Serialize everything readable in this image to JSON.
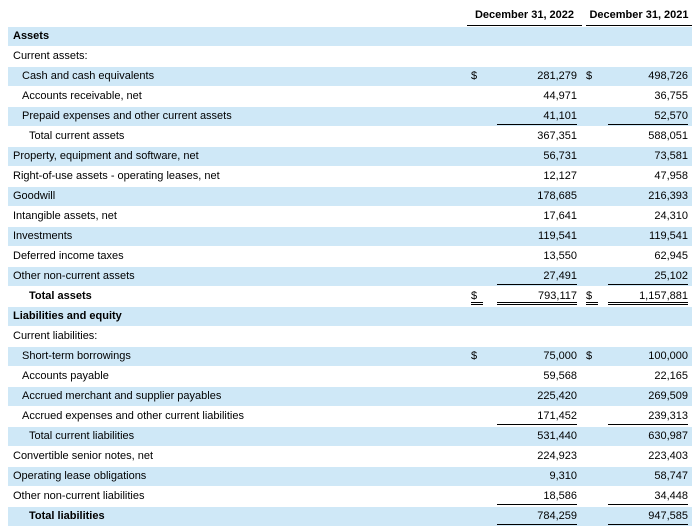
{
  "table": {
    "columns": [
      "December 31, 2022",
      "December 31, 2021"
    ],
    "rows": [
      {
        "label": "Assets"
      },
      {
        "label": "Current assets:"
      },
      {
        "label": "Cash and cash equivalents",
        "currency": [
          "$",
          "$"
        ],
        "values": [
          "281,279",
          "498,726"
        ]
      },
      {
        "label": "Accounts receivable, net",
        "values": [
          "44,971",
          "36,755"
        ]
      },
      {
        "label": "Prepaid expenses and other current assets",
        "values": [
          "41,101",
          "52,570"
        ]
      },
      {
        "label": "Total current assets",
        "values": [
          "367,351",
          "588,051"
        ]
      },
      {
        "label": "Property, equipment and software, net",
        "values": [
          "56,731",
          "73,581"
        ]
      },
      {
        "label": "Right-of-use assets - operating leases, net",
        "values": [
          "12,127",
          "47,958"
        ]
      },
      {
        "label": "Goodwill",
        "values": [
          "178,685",
          "216,393"
        ]
      },
      {
        "label": "Intangible assets, net",
        "values": [
          "17,641",
          "24,310"
        ]
      },
      {
        "label": "Investments",
        "values": [
          "119,541",
          "119,541"
        ]
      },
      {
        "label": "Deferred income taxes",
        "values": [
          "13,550",
          "62,945"
        ]
      },
      {
        "label": "Other non-current assets",
        "values": [
          "27,491",
          "25,102"
        ]
      },
      {
        "label": "Total assets",
        "currency": [
          "$",
          "$"
        ],
        "values": [
          "793,117",
          "1,157,881"
        ]
      },
      {
        "label": "Liabilities and equity"
      },
      {
        "label": "Current liabilities:"
      },
      {
        "label": "Short-term borrowings",
        "currency": [
          "$",
          "$"
        ],
        "values": [
          "75,000",
          "100,000"
        ]
      },
      {
        "label": "Accounts payable",
        "values": [
          "59,568",
          "22,165"
        ]
      },
      {
        "label": "Accrued merchant and supplier payables",
        "values": [
          "225,420",
          "269,509"
        ]
      },
      {
        "label": "Accrued expenses and other current liabilities",
        "values": [
          "171,452",
          "239,313"
        ]
      },
      {
        "label": "Total current liabilities",
        "values": [
          "531,440",
          "630,987"
        ]
      },
      {
        "label": "Convertible senior notes, net",
        "values": [
          "224,923",
          "223,403"
        ]
      },
      {
        "label": "Operating lease obligations",
        "values": [
          "9,310",
          "58,747"
        ]
      },
      {
        "label": "Other non-current liabilities",
        "values": [
          "18,586",
          "34,448"
        ]
      },
      {
        "label": "Total liabilities",
        "values": [
          "784,259",
          "947,585"
        ]
      }
    ]
  }
}
